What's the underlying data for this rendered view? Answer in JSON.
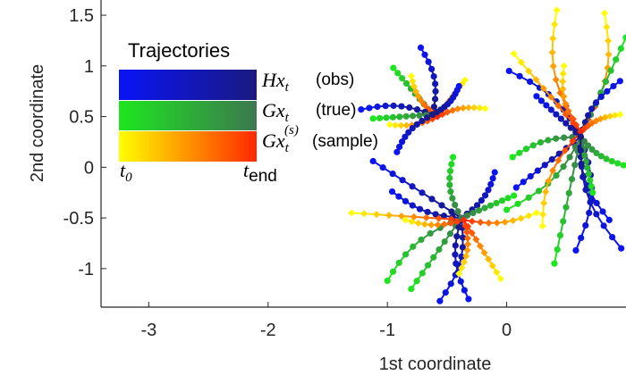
{
  "chart_data": {
    "type": "line",
    "title": "",
    "xlabel": "1st coordinate",
    "ylabel": "2nd coordinate",
    "xlim": [
      -3.4,
      1.0
    ],
    "ylim": [
      -1.38,
      1.65
    ],
    "xticks": [
      -3,
      -2,
      -1,
      0
    ],
    "xtick_labels": [
      "-3",
      "-2",
      "-1",
      "0"
    ],
    "yticks": [
      -1,
      -0.5,
      0,
      0.5,
      1,
      1.5
    ],
    "ytick_labels": [
      "-1",
      "-0.5",
      "0",
      "0.5",
      "1",
      "1.5"
    ],
    "grid": false,
    "legend": {
      "title": "Trajectories",
      "placement": "top-left",
      "entries": [
        {
          "math": "Hx",
          "sub": "t",
          "sup": "",
          "suffix": "(obs)",
          "color_start": "#0a14f5",
          "color_end": "#1a1a80"
        },
        {
          "math": "Gx",
          "sub": "t",
          "sup": "",
          "suffix": "(true)",
          "color_start": "#1ee61e",
          "color_end": "#3c7850"
        },
        {
          "math": "Gx",
          "sub": "t",
          "sup": "(s)",
          "suffix": "(sample)",
          "color_start": "#ffff00",
          "color_end": "#ff2800"
        }
      ],
      "time_start_math": "t",
      "time_start_sub": "0",
      "time_end_math": "t",
      "time_end_sub": "end"
    },
    "series": [
      {
        "name": "obs",
        "cluster": "upper-mid",
        "start": [
          -0.62,
          0.52
        ],
        "end": [
          -0.72,
          1.18
        ]
      },
      {
        "name": "true",
        "cluster": "upper-mid",
        "start": [
          -0.62,
          0.52
        ],
        "end": [
          -0.95,
          0.98
        ]
      },
      {
        "name": "sample",
        "cluster": "upper-mid",
        "start": [
          -0.58,
          0.5
        ],
        "end": [
          -0.8,
          0.9
        ]
      },
      {
        "name": "obs",
        "cluster": "upper-mid",
        "start": [
          -0.62,
          0.52
        ],
        "end": [
          -1.22,
          0.57
        ]
      },
      {
        "name": "true",
        "cluster": "upper-mid",
        "start": [
          -0.62,
          0.52
        ],
        "end": [
          -1.12,
          0.48
        ]
      },
      {
        "name": "sample",
        "cluster": "upper-mid",
        "start": [
          -0.58,
          0.5
        ],
        "end": [
          -0.98,
          0.42
        ]
      },
      {
        "name": "obs",
        "cluster": "upper-mid",
        "start": [
          -0.62,
          0.52
        ],
        "end": [
          -0.92,
          0.15
        ]
      },
      {
        "name": "sample",
        "cluster": "upper-mid",
        "start": [
          -0.58,
          0.5
        ],
        "end": [
          -0.35,
          0.86
        ]
      },
      {
        "name": "sample",
        "cluster": "upper-mid",
        "start": [
          -0.58,
          0.5
        ],
        "end": [
          -0.18,
          0.58
        ]
      },
      {
        "name": "obs",
        "cluster": "upper-mid",
        "start": [
          -0.62,
          0.52
        ],
        "end": [
          -0.4,
          0.8
        ]
      },
      {
        "name": "obs",
        "cluster": "lower-mid",
        "start": [
          -0.38,
          -0.5
        ],
        "end": [
          -1.12,
          0.06
        ]
      },
      {
        "name": "obs",
        "cluster": "lower-mid",
        "start": [
          -0.38,
          -0.5
        ],
        "end": [
          -0.96,
          -0.24
        ]
      },
      {
        "name": "true",
        "cluster": "lower-mid",
        "start": [
          -0.38,
          -0.5
        ],
        "end": [
          -1.0,
          -1.12
        ]
      },
      {
        "name": "true",
        "cluster": "lower-mid",
        "start": [
          -0.38,
          -0.5
        ],
        "end": [
          -0.8,
          -1.2
        ]
      },
      {
        "name": "obs",
        "cluster": "lower-mid",
        "start": [
          -0.38,
          -0.5
        ],
        "end": [
          -0.56,
          -1.32
        ]
      },
      {
        "name": "obs",
        "cluster": "lower-mid",
        "start": [
          -0.38,
          -0.5
        ],
        "end": [
          -0.32,
          -1.3
        ]
      },
      {
        "name": "sample",
        "cluster": "lower-mid",
        "start": [
          -0.36,
          -0.52
        ],
        "end": [
          -1.3,
          -0.45
        ]
      },
      {
        "name": "sample",
        "cluster": "lower-mid",
        "start": [
          -0.36,
          -0.52
        ],
        "end": [
          -0.85,
          -0.52
        ]
      },
      {
        "name": "sample",
        "cluster": "lower-mid",
        "start": [
          -0.36,
          -0.52
        ],
        "end": [
          0.25,
          -0.45
        ]
      },
      {
        "name": "sample",
        "cluster": "lower-mid",
        "start": [
          -0.36,
          -0.52
        ],
        "end": [
          -0.05,
          -1.1
        ]
      },
      {
        "name": "true",
        "cluster": "lower-mid",
        "start": [
          -0.38,
          -0.5
        ],
        "end": [
          -0.45,
          0.1
        ]
      },
      {
        "name": "obs",
        "cluster": "lower-mid",
        "start": [
          -0.38,
          -0.5
        ],
        "end": [
          -0.1,
          -0.05
        ]
      },
      {
        "name": "true",
        "cluster": "lower-mid",
        "start": [
          -0.38,
          -0.5
        ],
        "end": [
          0.06,
          -0.28
        ]
      },
      {
        "name": "sample",
        "cluster": "lower-mid",
        "start": [
          -0.36,
          -0.52
        ],
        "end": [
          -0.4,
          -1.05
        ]
      },
      {
        "name": "obs",
        "cluster": "right",
        "start": [
          0.62,
          0.3
        ],
        "end": [
          0.02,
          0.95
        ]
      },
      {
        "name": "sample",
        "cluster": "right",
        "start": [
          0.62,
          0.35
        ],
        "end": [
          0.06,
          1.12
        ]
      },
      {
        "name": "sample",
        "cluster": "right",
        "start": [
          0.62,
          0.35
        ],
        "end": [
          0.42,
          1.55
        ]
      },
      {
        "name": "sample",
        "cluster": "right",
        "start": [
          0.62,
          0.35
        ],
        "end": [
          0.82,
          1.52
        ]
      },
      {
        "name": "true",
        "cluster": "right",
        "start": [
          0.62,
          0.3
        ],
        "end": [
          1.0,
          1.28
        ]
      },
      {
        "name": "obs",
        "cluster": "right",
        "start": [
          0.62,
          0.3
        ],
        "end": [
          0.95,
          0.85
        ]
      },
      {
        "name": "true",
        "cluster": "right",
        "start": [
          0.62,
          0.3
        ],
        "end": [
          0.05,
          0.1
        ]
      },
      {
        "name": "obs",
        "cluster": "right",
        "start": [
          0.62,
          0.3
        ],
        "end": [
          0.08,
          -0.2
        ]
      },
      {
        "name": "true",
        "cluster": "right",
        "start": [
          0.62,
          0.3
        ],
        "end": [
          0.0,
          -0.42
        ]
      },
      {
        "name": "sample",
        "cluster": "right",
        "start": [
          0.62,
          0.35
        ],
        "end": [
          0.3,
          -0.58
        ]
      },
      {
        "name": "true",
        "cluster": "right",
        "start": [
          0.62,
          0.3
        ],
        "end": [
          0.4,
          -0.95
        ]
      },
      {
        "name": "obs",
        "cluster": "right",
        "start": [
          0.62,
          0.3
        ],
        "end": [
          0.58,
          -0.82
        ]
      },
      {
        "name": "obs",
        "cluster": "right",
        "start": [
          0.62,
          0.3
        ],
        "end": [
          0.86,
          -0.52
        ]
      },
      {
        "name": "true",
        "cluster": "right",
        "start": [
          0.62,
          0.3
        ],
        "end": [
          0.72,
          -0.25
        ]
      },
      {
        "name": "sample",
        "cluster": "right",
        "start": [
          0.62,
          0.35
        ],
        "end": [
          0.95,
          0.52
        ]
      },
      {
        "name": "true",
        "cluster": "right",
        "start": [
          0.62,
          0.3
        ],
        "end": [
          0.98,
          0.02
        ]
      },
      {
        "name": "obs",
        "cluster": "right",
        "start": [
          0.62,
          0.3
        ],
        "end": [
          0.25,
          0.7
        ]
      },
      {
        "name": "sample",
        "cluster": "right",
        "start": [
          0.62,
          0.35
        ],
        "end": [
          0.48,
          1.0
        ]
      },
      {
        "name": "obs",
        "cluster": "right",
        "start": [
          0.62,
          0.3
        ],
        "end": [
          0.96,
          -0.8
        ]
      }
    ]
  }
}
